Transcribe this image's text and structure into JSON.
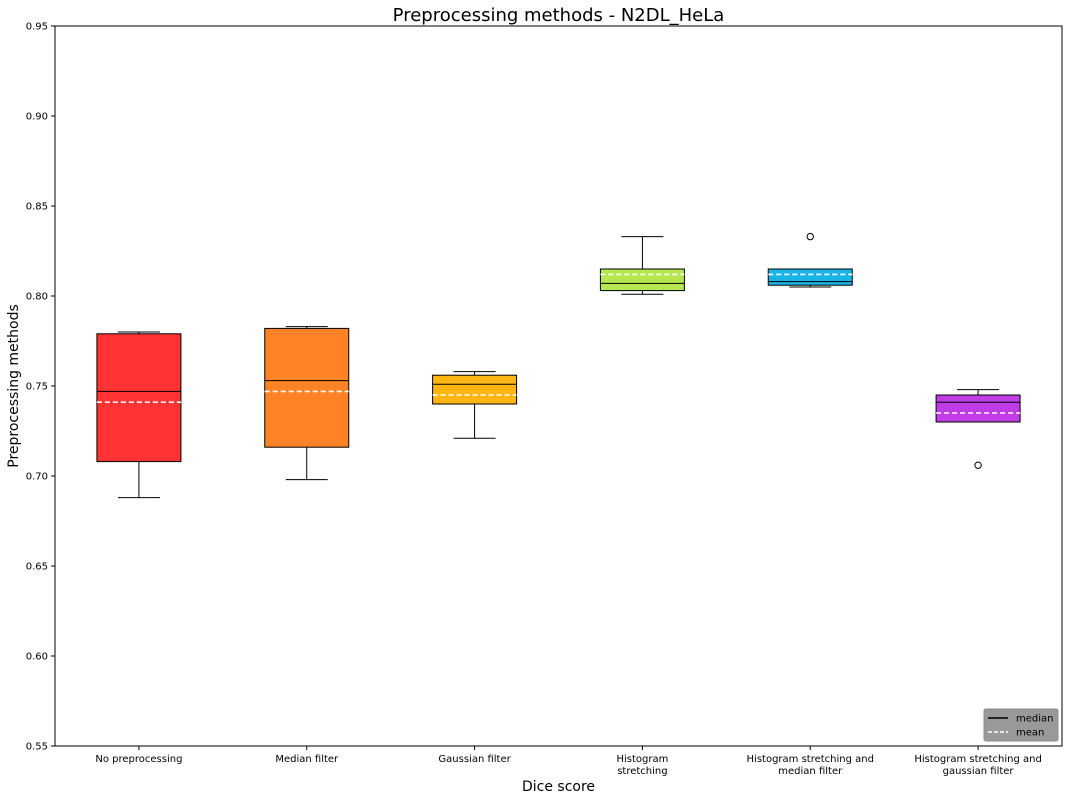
{
  "chart_data": {
    "type": "box",
    "title": "Preprocessing methods - N2DL_HeLa",
    "xlabel": "Dice score",
    "ylabel": "Preprocessing methods",
    "ylim": [
      0.55,
      0.95
    ],
    "yticks": [
      "0.55",
      "0.60",
      "0.65",
      "0.70",
      "0.75",
      "0.80",
      "0.85",
      "0.90",
      "0.95"
    ],
    "grid": false,
    "legend_position": "bottom-right",
    "legend": [
      {
        "label": "median",
        "style": "solid",
        "color": "#000000"
      },
      {
        "label": "mean",
        "style": "dashed",
        "color": "#ffffff"
      }
    ],
    "categories": [
      [
        "No preprocessing"
      ],
      [
        "Median filter"
      ],
      [
        "Gaussian filter"
      ],
      [
        "Histogram",
        "stretching"
      ],
      [
        "Histogram stretching and",
        "median filter"
      ],
      [
        "Histogram stretching and",
        "gaussian filter"
      ]
    ],
    "boxes": [
      {
        "color": "#ff3333",
        "whisker_low": 0.688,
        "q1": 0.708,
        "median": 0.747,
        "mean": 0.741,
        "q3": 0.779,
        "whisker_high": 0.78,
        "outliers": []
      },
      {
        "color": "#ff8326",
        "whisker_low": 0.698,
        "q1": 0.716,
        "median": 0.753,
        "mean": 0.747,
        "q3": 0.782,
        "whisker_high": 0.783,
        "outliers": []
      },
      {
        "color": "#ffb612",
        "whisker_low": 0.721,
        "q1": 0.74,
        "median": 0.751,
        "mean": 0.745,
        "q3": 0.756,
        "whisker_high": 0.758,
        "outliers": []
      },
      {
        "color": "#b6e650",
        "whisker_low": 0.801,
        "q1": 0.803,
        "median": 0.807,
        "mean": 0.812,
        "q3": 0.815,
        "whisker_high": 0.833,
        "outliers": []
      },
      {
        "color": "#1ab4e6",
        "whisker_low": 0.805,
        "q1": 0.806,
        "median": 0.808,
        "mean": 0.812,
        "q3": 0.815,
        "whisker_high": 0.815,
        "outliers": [
          0.833
        ]
      },
      {
        "color": "#c03ce6",
        "whisker_low": 0.73,
        "q1": 0.73,
        "median": 0.741,
        "mean": 0.735,
        "q3": 0.745,
        "whisker_high": 0.748,
        "outliers": [
          0.706
        ]
      }
    ]
  }
}
